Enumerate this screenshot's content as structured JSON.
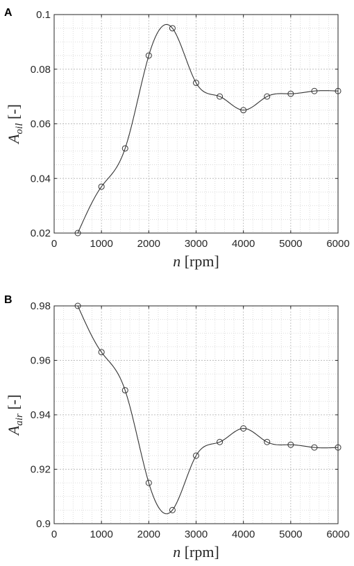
{
  "chart_data": [
    {
      "type": "line",
      "panel": "A",
      "xlabel": {
        "var": "n",
        "unit": "[rpm]"
      },
      "ylabel": {
        "var": "A",
        "sub": "oil",
        "unit": "[-]"
      },
      "xlim": [
        0,
        6000
      ],
      "ylim": [
        0.02,
        0.1
      ],
      "xticks": [
        0,
        1000,
        2000,
        3000,
        4000,
        5000,
        6000
      ],
      "yticks": [
        0.02,
        0.04,
        0.06,
        0.08,
        0.1
      ],
      "xtick_labels": [
        "0",
        "1000",
        "2000",
        "3000",
        "4000",
        "5000",
        "6000"
      ],
      "ytick_labels": [
        "0.02",
        "0.04",
        "0.06",
        "0.08",
        "0.1"
      ],
      "grid": true,
      "markers": "circle",
      "x": [
        500,
        1000,
        1500,
        2000,
        2500,
        3000,
        3500,
        4000,
        4500,
        5000,
        5500,
        6000
      ],
      "y": [
        0.02,
        0.037,
        0.051,
        0.085,
        0.095,
        0.075,
        0.07,
        0.065,
        0.07,
        0.071,
        0.072,
        0.072
      ]
    },
    {
      "type": "line",
      "panel": "B",
      "xlabel": {
        "var": "n",
        "unit": "[rpm]"
      },
      "ylabel": {
        "var": "A",
        "sub": "air",
        "unit": "[-]"
      },
      "xlim": [
        0,
        6000
      ],
      "ylim": [
        0.9,
        0.98
      ],
      "xticks": [
        0,
        1000,
        2000,
        3000,
        4000,
        5000,
        6000
      ],
      "yticks": [
        0.9,
        0.92,
        0.94,
        0.96,
        0.98
      ],
      "xtick_labels": [
        "0",
        "1000",
        "2000",
        "3000",
        "4000",
        "5000",
        "6000"
      ],
      "ytick_labels": [
        "0.9",
        "0.92",
        "0.94",
        "0.96",
        "0.98"
      ],
      "grid": true,
      "markers": "circle",
      "x": [
        500,
        1000,
        1500,
        2000,
        2500,
        3000,
        3500,
        4000,
        4500,
        5000,
        5500,
        6000
      ],
      "y": [
        0.98,
        0.963,
        0.949,
        0.915,
        0.905,
        0.925,
        0.93,
        0.935,
        0.93,
        0.929,
        0.928,
        0.928
      ]
    }
  ]
}
